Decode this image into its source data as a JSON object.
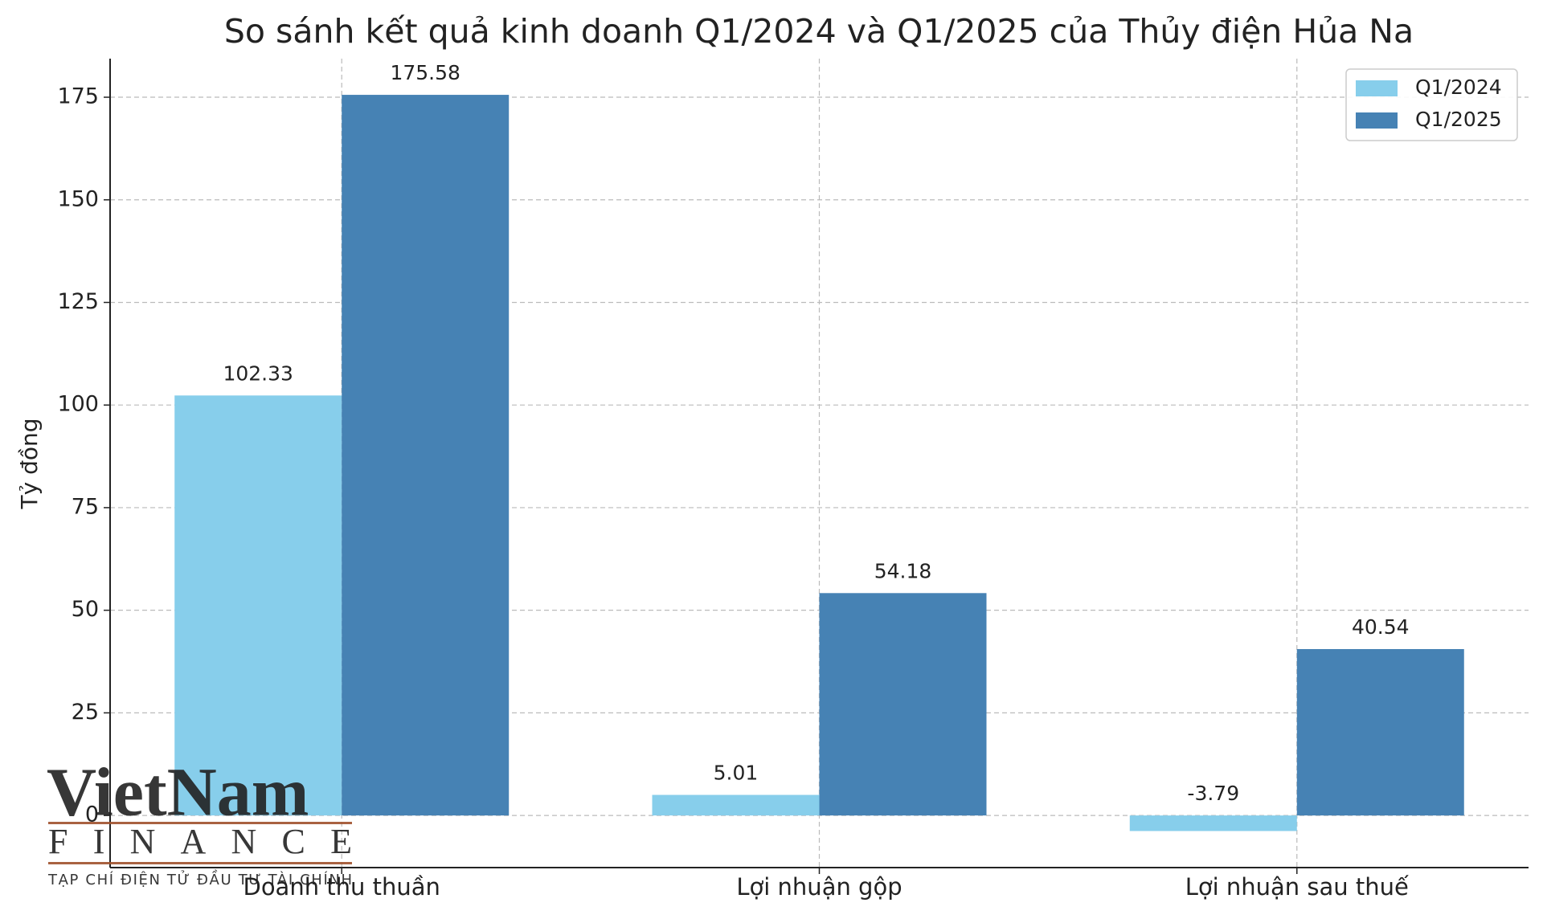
{
  "chart_data": {
    "type": "bar",
    "title": "So sánh kết quả kinh doanh Q1/2024 và Q1/2025 của Thủy điện Hủa Na",
    "y_label": "Tỷ đồng",
    "categories": [
      "Doanh thu thuần",
      "Lợi nhuận gộp",
      "Lợi nhuận sau thuế"
    ],
    "series": [
      {
        "name": "Q1/2024",
        "color": "#87ceeb",
        "values": [
          102.33,
          5.01,
          -3.79
        ]
      },
      {
        "name": "Q1/2025",
        "color": "#4682b4",
        "values": [
          175.58,
          54.18,
          40.54
        ]
      }
    ],
    "ylim": [
      -12.7,
      184.4
    ],
    "yticks": [
      0,
      25,
      50,
      75,
      100,
      125,
      150,
      175
    ],
    "grid": true,
    "legend": "upper right"
  },
  "watermark": {
    "brand": "VietNam",
    "subtitle": "FINANCE",
    "tagline": "TẠP CHÍ ĐIỆN TỬ ĐẦU TƯ TÀI CHÍNH"
  }
}
